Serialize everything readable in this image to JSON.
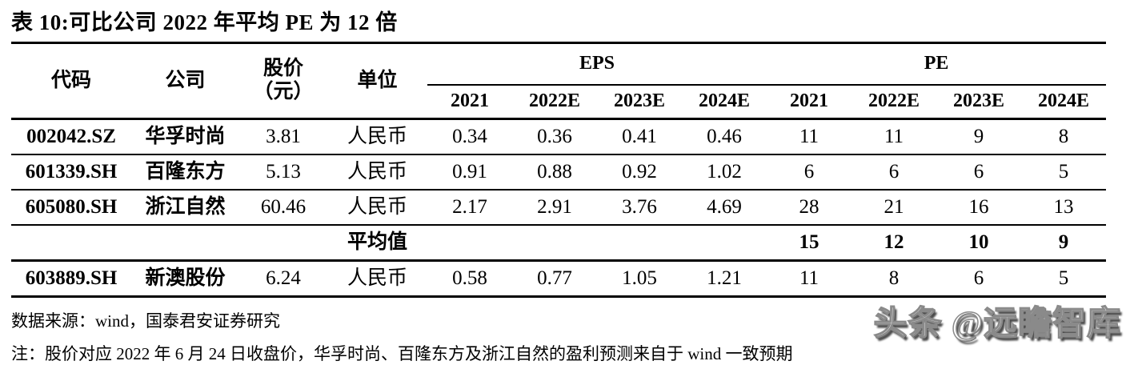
{
  "title": "表 10:可比公司 2022 年平均 PE 为 12 倍",
  "table": {
    "headers": {
      "code": "代码",
      "company": "公司",
      "price_line1": "股价",
      "price_line2": "（元）",
      "unit": "单位",
      "eps_group": "EPS",
      "pe_group": "PE",
      "years": [
        "2021",
        "2022E",
        "2023E",
        "2024E"
      ]
    },
    "rows": [
      {
        "code": "002042.SZ",
        "company": "华孚时尚",
        "price": "3.81",
        "unit": "人民币",
        "eps": [
          "0.34",
          "0.36",
          "0.41",
          "0.46"
        ],
        "pe": [
          "11",
          "11",
          "9",
          "8"
        ],
        "is_average": false
      },
      {
        "code": "601339.SH",
        "company": "百隆东方",
        "price": "5.13",
        "unit": "人民币",
        "eps": [
          "0.91",
          "0.88",
          "0.92",
          "1.02"
        ],
        "pe": [
          "6",
          "6",
          "6",
          "5"
        ],
        "is_average": false
      },
      {
        "code": "605080.SH",
        "company": "浙江自然",
        "price": "60.46",
        "unit": "人民币",
        "eps": [
          "2.17",
          "2.91",
          "3.76",
          "4.69"
        ],
        "pe": [
          "28",
          "21",
          "16",
          "13"
        ],
        "is_average": false
      },
      {
        "code": "",
        "company": "",
        "price": "",
        "unit": "平均值",
        "eps": [
          "",
          "",
          "",
          ""
        ],
        "pe": [
          "15",
          "12",
          "10",
          "9"
        ],
        "is_average": true
      },
      {
        "code": "603889.SH",
        "company": "新澳股份",
        "price": "6.24",
        "unit": "人民币",
        "eps": [
          "0.58",
          "0.77",
          "1.05",
          "1.21"
        ],
        "pe": [
          "11",
          "8",
          "6",
          "5"
        ],
        "is_average": false
      }
    ]
  },
  "source": "数据来源：wind，国泰君安证券研究",
  "note": "注：股价对应 2022 年 6 月 24 日收盘价，华孚时尚、百隆东方及浙江自然的盈利预测来自于 wind 一致预期",
  "watermark": "头条 @远瞻智库",
  "colors": {
    "text": "#000000",
    "background": "#ffffff",
    "rule": "#000000"
  }
}
